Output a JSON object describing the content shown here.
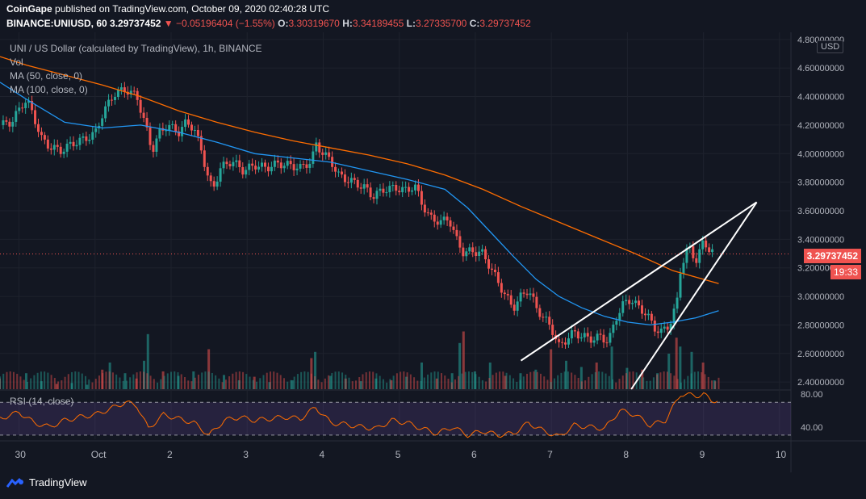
{
  "header": {
    "line1_author": "CoinGape",
    "line1_rest": "published on TradingView.com, October 09, 2020 02:40:28 UTC",
    "symbol": "BINANCE:UNIUSD, 60",
    "last": "3.29737452",
    "change": "▼ −0.05196404 (−1.55%)",
    "o_label": "O:",
    "o_value": "3.30319670",
    "h_label": "H:",
    "h_value": "3.34189455",
    "l_label": "L:",
    "l_value": "3.27335700",
    "c_label": "C:",
    "c_value": "3.29737452"
  },
  "legend": {
    "title": "UNI / US Dollar (calculated by TradingView), 1h, BINANCE",
    "vol": "Vol",
    "ma50": "MA (50, close, 0)",
    "ma100": "MA (100, close, 0)",
    "rsi": "RSI (14, close)"
  },
  "price_axis": {
    "currency": "USD",
    "current_price": "3.29737452",
    "countdown": "19:33"
  },
  "footer": {
    "brand": "TradingView"
  },
  "colors": {
    "background": "#131722",
    "up": "#26a69a",
    "down": "#ef5350",
    "ma50": "#2196f3",
    "ma100": "#ff6d00",
    "rsi": "#ff6d00",
    "rsi_band": "#7e57c2"
  },
  "chart_data": {
    "type": "candlestick",
    "title": "UNI / US Dollar (calculated by TradingView), 1h, BINANCE",
    "ylim": [
      2.35,
      4.85
    ],
    "y_ticks": [
      "4.80000000",
      "4.60000000",
      "4.40000000",
      "4.20000000",
      "4.00000000",
      "3.80000000",
      "3.60000000",
      "3.40000000",
      "3.20000000",
      "3.00000000",
      "2.80000000",
      "2.60000000",
      "2.40000000"
    ],
    "x_ticks": [
      "30",
      "Oct",
      "2",
      "3",
      "4",
      "5",
      "6",
      "7",
      "8",
      "9",
      "10"
    ],
    "x_range_days": [
      -0.35,
      10.05
    ],
    "close_path": [
      [
        -0.35,
        4.2
      ],
      [
        -0.2,
        4.22
      ],
      [
        -0.05,
        4.35
      ],
      [
        0.0,
        4.38
      ],
      [
        0.1,
        4.25
      ],
      [
        0.2,
        4.1
      ],
      [
        0.3,
        4.05
      ],
      [
        0.45,
        4.02
      ],
      [
        0.6,
        4.07
      ],
      [
        0.75,
        4.1
      ],
      [
        0.9,
        4.14
      ],
      [
        1.0,
        4.28
      ],
      [
        1.15,
        4.42
      ],
      [
        1.3,
        4.45
      ],
      [
        1.45,
        4.4
      ],
      [
        1.55,
        4.22
      ],
      [
        1.65,
        4.02
      ],
      [
        1.75,
        4.15
      ],
      [
        1.85,
        4.2
      ],
      [
        2.0,
        4.15
      ],
      [
        2.1,
        4.22
      ],
      [
        2.2,
        4.18
      ],
      [
        2.3,
        4.02
      ],
      [
        2.4,
        3.8
      ],
      [
        2.45,
        3.75
      ],
      [
        2.55,
        3.9
      ],
      [
        2.7,
        3.95
      ],
      [
        2.85,
        3.88
      ],
      [
        3.0,
        3.92
      ],
      [
        3.15,
        3.9
      ],
      [
        3.3,
        3.93
      ],
      [
        3.45,
        3.92
      ],
      [
        3.6,
        3.9
      ],
      [
        3.75,
        3.95
      ],
      [
        3.8,
        4.07
      ],
      [
        3.9,
        4.0
      ],
      [
        4.0,
        3.95
      ],
      [
        4.1,
        3.85
      ],
      [
        4.2,
        3.82
      ],
      [
        4.3,
        3.8
      ],
      [
        4.45,
        3.76
      ],
      [
        4.55,
        3.7
      ],
      [
        4.7,
        3.75
      ],
      [
        4.85,
        3.76
      ],
      [
        5.0,
        3.74
      ],
      [
        5.1,
        3.78
      ],
      [
        5.2,
        3.65
      ],
      [
        5.3,
        3.55
      ],
      [
        5.45,
        3.52
      ],
      [
        5.55,
        3.55
      ],
      [
        5.65,
        3.4
      ],
      [
        5.75,
        3.3
      ],
      [
        5.85,
        3.32
      ],
      [
        6.0,
        3.3
      ],
      [
        6.1,
        3.2
      ],
      [
        6.2,
        3.1
      ],
      [
        6.3,
        3.0
      ],
      [
        6.4,
        2.92
      ],
      [
        6.5,
        3.0
      ],
      [
        6.6,
        3.05
      ],
      [
        6.7,
        2.92
      ],
      [
        6.8,
        2.85
      ],
      [
        6.9,
        2.78
      ],
      [
        7.0,
        2.65
      ],
      [
        7.1,
        2.7
      ],
      [
        7.2,
        2.75
      ],
      [
        7.3,
        2.72
      ],
      [
        7.45,
        2.7
      ],
      [
        7.55,
        2.72
      ],
      [
        7.65,
        2.68
      ],
      [
        7.75,
        2.85
      ],
      [
        7.85,
        2.95
      ],
      [
        7.95,
        2.98
      ],
      [
        8.05,
        2.92
      ],
      [
        8.15,
        2.88
      ],
      [
        8.25,
        2.78
      ],
      [
        8.35,
        2.75
      ],
      [
        8.45,
        2.8
      ],
      [
        8.55,
        2.95
      ],
      [
        8.6,
        3.2
      ],
      [
        8.7,
        3.35
      ],
      [
        8.8,
        3.25
      ],
      [
        8.9,
        3.38
      ],
      [
        9.0,
        3.32
      ],
      [
        9.05,
        3.3
      ]
    ],
    "ma50": [
      [
        -0.35,
        4.5
      ],
      [
        0.0,
        4.38
      ],
      [
        0.5,
        4.22
      ],
      [
        1.0,
        4.18
      ],
      [
        1.5,
        4.2
      ],
      [
        2.0,
        4.15
      ],
      [
        2.5,
        4.08
      ],
      [
        3.0,
        4.0
      ],
      [
        3.5,
        3.97
      ],
      [
        4.0,
        3.94
      ],
      [
        4.5,
        3.88
      ],
      [
        5.0,
        3.82
      ],
      [
        5.5,
        3.75
      ],
      [
        5.8,
        3.62
      ],
      [
        6.1,
        3.45
      ],
      [
        6.4,
        3.28
      ],
      [
        6.7,
        3.12
      ],
      [
        7.0,
        3.0
      ],
      [
        7.3,
        2.92
      ],
      [
        7.6,
        2.86
      ],
      [
        7.9,
        2.82
      ],
      [
        8.2,
        2.8
      ],
      [
        8.5,
        2.82
      ],
      [
        8.8,
        2.85
      ],
      [
        9.1,
        2.9
      ]
    ],
    "ma100": [
      [
        -0.35,
        4.68
      ],
      [
        0.0,
        4.62
      ],
      [
        0.5,
        4.55
      ],
      [
        1.0,
        4.48
      ],
      [
        1.5,
        4.4
      ],
      [
        2.0,
        4.3
      ],
      [
        2.5,
        4.22
      ],
      [
        3.0,
        4.15
      ],
      [
        3.5,
        4.09
      ],
      [
        4.0,
        4.04
      ],
      [
        4.5,
        3.99
      ],
      [
        5.0,
        3.93
      ],
      [
        5.5,
        3.85
      ],
      [
        6.0,
        3.75
      ],
      [
        6.5,
        3.63
      ],
      [
        7.0,
        3.52
      ],
      [
        7.5,
        3.41
      ],
      [
        8.0,
        3.3
      ],
      [
        8.5,
        3.18
      ],
      [
        9.1,
        3.09
      ]
    ],
    "trendlines": [
      {
        "from": [
          6.5,
          2.55
        ],
        "to": [
          9.6,
          3.66
        ]
      },
      {
        "from": [
          7.95,
          2.35
        ],
        "to": [
          9.6,
          3.66
        ]
      }
    ],
    "rsi": {
      "name": "RSI (14, close)",
      "ylim": [
        25,
        85
      ],
      "y_ticks": [
        "80.00",
        "40.00"
      ],
      "band": [
        30,
        70
      ],
      "values": [
        [
          -0.35,
          50
        ],
        [
          -0.1,
          58
        ],
        [
          0.1,
          45
        ],
        [
          0.3,
          40
        ],
        [
          0.5,
          48
        ],
        [
          0.7,
          52
        ],
        [
          0.9,
          55
        ],
        [
          1.1,
          62
        ],
        [
          1.3,
          70
        ],
        [
          1.45,
          66
        ],
        [
          1.6,
          38
        ],
        [
          1.8,
          55
        ],
        [
          2.0,
          50
        ],
        [
          2.2,
          45
        ],
        [
          2.4,
          30
        ],
        [
          2.6,
          48
        ],
        [
          2.8,
          52
        ],
        [
          3.0,
          48
        ],
        [
          3.2,
          50
        ],
        [
          3.4,
          52
        ],
        [
          3.6,
          50
        ],
        [
          3.8,
          64
        ],
        [
          4.0,
          45
        ],
        [
          4.2,
          43
        ],
        [
          4.4,
          40
        ],
        [
          4.6,
          38
        ],
        [
          4.8,
          48
        ],
        [
          5.0,
          45
        ],
        [
          5.2,
          38
        ],
        [
          5.4,
          32
        ],
        [
          5.6,
          40
        ],
        [
          5.8,
          30
        ],
        [
          6.0,
          35
        ],
        [
          6.2,
          30
        ],
        [
          6.4,
          32
        ],
        [
          6.6,
          45
        ],
        [
          6.8,
          35
        ],
        [
          7.0,
          28
        ],
        [
          7.2,
          42
        ],
        [
          7.4,
          40
        ],
        [
          7.6,
          38
        ],
        [
          7.8,
          60
        ],
        [
          8.0,
          55
        ],
        [
          8.2,
          42
        ],
        [
          8.4,
          48
        ],
        [
          8.6,
          80
        ],
        [
          8.8,
          78
        ],
        [
          8.9,
          80
        ],
        [
          9.0,
          72
        ],
        [
          9.1,
          73
        ]
      ]
    },
    "volume": {
      "ylim": [
        0,
        1
      ],
      "values": [
        [
          -0.35,
          0.12
        ],
        [
          0.0,
          0.18
        ],
        [
          0.2,
          0.09
        ],
        [
          0.4,
          0.06
        ],
        [
          0.6,
          0.07
        ],
        [
          0.8,
          0.05
        ],
        [
          1.0,
          0.22
        ],
        [
          1.1,
          0.3
        ],
        [
          1.3,
          0.18
        ],
        [
          1.45,
          0.12
        ],
        [
          1.55,
          0.32
        ],
        [
          1.6,
          0.62
        ],
        [
          1.8,
          0.2
        ],
        [
          2.0,
          0.15
        ],
        [
          2.2,
          0.2
        ],
        [
          2.4,
          0.45
        ],
        [
          2.6,
          0.16
        ],
        [
          2.8,
          0.1
        ],
        [
          3.0,
          0.14
        ],
        [
          3.2,
          0.08
        ],
        [
          3.5,
          0.1
        ],
        [
          3.75,
          0.35
        ],
        [
          3.8,
          0.42
        ],
        [
          4.0,
          0.15
        ],
        [
          4.2,
          0.12
        ],
        [
          4.4,
          0.09
        ],
        [
          4.6,
          0.12
        ],
        [
          4.8,
          0.1
        ],
        [
          5.0,
          0.14
        ],
        [
          5.2,
          0.3
        ],
        [
          5.4,
          0.12
        ],
        [
          5.6,
          0.18
        ],
        [
          5.7,
          0.52
        ],
        [
          5.75,
          0.65
        ],
        [
          5.9,
          0.2
        ],
        [
          6.1,
          0.3
        ],
        [
          6.3,
          0.15
        ],
        [
          6.5,
          0.18
        ],
        [
          6.7,
          0.22
        ],
        [
          6.9,
          0.45
        ],
        [
          7.1,
          0.32
        ],
        [
          7.3,
          0.25
        ],
        [
          7.5,
          0.3
        ],
        [
          7.7,
          0.48
        ],
        [
          7.9,
          0.24
        ],
        [
          8.1,
          0.22
        ],
        [
          8.3,
          0.18
        ],
        [
          8.45,
          0.4
        ],
        [
          8.55,
          0.58
        ],
        [
          8.6,
          0.48
        ],
        [
          8.75,
          0.42
        ],
        [
          8.9,
          0.3
        ],
        [
          9.05,
          0.1
        ]
      ]
    }
  }
}
